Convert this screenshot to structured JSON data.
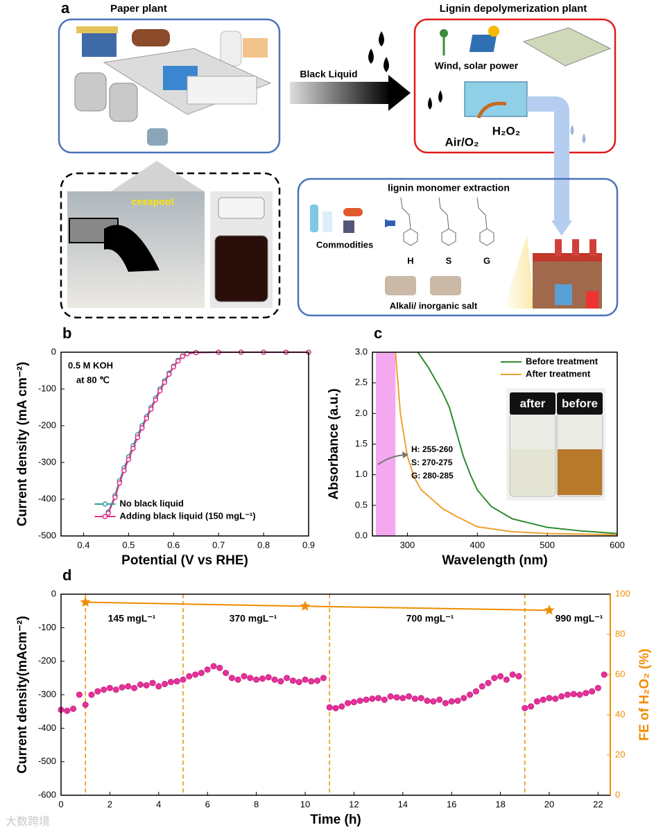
{
  "panel_a": {
    "label": "a",
    "paper_plant": "Paper plant",
    "cesspool": "cesspool",
    "black_liquid": "Black Liquid",
    "lignin_plant": "Lignin depolymerization plant",
    "wind_solar": "Wind, solar power",
    "h2o2": "H₂O₂",
    "air_o2": "Air/O₂",
    "extraction": "lignin monomer extraction",
    "commodities": "Commodities",
    "monomers": [
      "H",
      "S",
      "G"
    ],
    "salt": "Alkali/ inorganic salt"
  },
  "watermark": "大数跨境",
  "chart_data": [
    {
      "type": "line",
      "label": "b",
      "xlabel": "Potential (V vs RHE)",
      "ylabel": "Current density (mA cm⁻²)",
      "annotations": [
        "0.5 M KOH",
        "at 80 ℃"
      ],
      "markers": true,
      "legend": "lower center",
      "xlim": [
        0.35,
        0.9
      ],
      "xticks": [
        0.4,
        0.5,
        0.6,
        0.7,
        0.8,
        0.9
      ],
      "ylim": [
        -500,
        0
      ],
      "yticks": [
        -500,
        -400,
        -300,
        -200,
        -100,
        0
      ],
      "x": [
        0.455,
        0.47,
        0.48,
        0.49,
        0.5,
        0.51,
        0.52,
        0.53,
        0.54,
        0.55,
        0.56,
        0.57,
        0.58,
        0.59,
        0.6,
        0.61,
        0.62,
        0.63,
        0.65,
        0.7,
        0.75,
        0.8,
        0.85,
        0.9
      ],
      "series": [
        {
          "name": "No black liquid",
          "color": "#2a9d9d",
          "values": [
            -435,
            -390,
            -350,
            -315,
            -285,
            -255,
            -225,
            -200,
            -175,
            -150,
            -125,
            -100,
            -78,
            -57,
            -38,
            -22,
            -10,
            -4,
            -1,
            0,
            0,
            0,
            0,
            0
          ]
        },
        {
          "name": "Adding black liquid (150 mgL⁻¹)",
          "color": "#e0308a",
          "values": [
            -438,
            -395,
            -356,
            -322,
            -292,
            -262,
            -232,
            -206,
            -180,
            -155,
            -130,
            -105,
            -82,
            -60,
            -40,
            -24,
            -11,
            -4,
            -1,
            0,
            0,
            0,
            0,
            0
          ]
        }
      ]
    },
    {
      "type": "line",
      "label": "c",
      "xlabel": "Wavelength (nm)",
      "ylabel": "Absorbance (a.u.)",
      "annotations": [
        "H: 255-260",
        "S: 270-275",
        "G: 280-285"
      ],
      "highlight": [
        255,
        283
      ],
      "highlight_color": "#f4a8f0",
      "inset_labels": [
        "after",
        "before"
      ],
      "legend": "upper right",
      "xlim": [
        250,
        600
      ],
      "xticks": [
        300,
        400,
        500,
        600
      ],
      "ylim": [
        0,
        3
      ],
      "yticks": [
        {
          "value": 0,
          "label": "0.0"
        },
        0.5,
        {
          "value": 1,
          "label": "1.0"
        },
        1.5,
        {
          "value": 2,
          "label": "2.0"
        },
        2.5,
        {
          "value": 3,
          "label": "3.0"
        }
      ],
      "series": [
        {
          "name": "Before treatment",
          "color": "#2e8b2e",
          "x": [
            315,
            330,
            350,
            360,
            370,
            380,
            390,
            400,
            420,
            450,
            500,
            550,
            600
          ],
          "values": [
            3,
            2.75,
            2.35,
            2.1,
            1.7,
            1.3,
            1,
            0.75,
            0.48,
            0.28,
            0.14,
            0.08,
            0.04
          ]
        },
        {
          "name": "After treatment",
          "color": "#f0a030",
          "x": [
            283,
            290,
            300,
            310,
            320,
            340,
            350,
            370,
            400,
            450,
            500,
            600
          ],
          "values": [
            3,
            2,
            1.3,
            0.95,
            0.75,
            0.55,
            0.45,
            0.32,
            0.15,
            0.07,
            0.04,
            0.02
          ]
        }
      ]
    },
    {
      "type": "scatter",
      "label": "d",
      "xlabel": "Time (h)",
      "ylabel": "Current density(mAcm⁻²)",
      "y2label": "FE of H₂O₂ (%)",
      "vlines": [
        1,
        5,
        11,
        19
      ],
      "segment_labels": [
        "145 mgL⁻¹",
        "370 mgL⁻¹",
        "700 mgL⁻¹",
        "990 mgL⁻¹"
      ],
      "xlim": [
        0,
        22.5
      ],
      "xticks": [
        0,
        2,
        4,
        6,
        8,
        10,
        12,
        14,
        16,
        18,
        20,
        22
      ],
      "ylim": [
        -600,
        0
      ],
      "yticks": [
        -600,
        -500,
        -400,
        -300,
        -200,
        -100,
        0
      ],
      "y2lim": [
        0,
        100
      ],
      "y2ticks": [
        0,
        20,
        40,
        60,
        80,
        100
      ],
      "x": [
        0,
        0.25,
        0.5,
        0.75,
        1,
        1.25,
        1.5,
        1.75,
        2,
        2.25,
        2.5,
        2.75,
        3,
        3.25,
        3.5,
        3.75,
        4,
        4.25,
        4.5,
        4.75,
        5,
        5.25,
        5.5,
        5.75,
        6,
        6.25,
        6.5,
        6.75,
        7,
        7.25,
        7.5,
        7.75,
        8,
        8.25,
        8.5,
        8.75,
        9,
        9.25,
        9.5,
        9.75,
        10,
        10.25,
        10.5,
        10.75,
        11,
        11.25,
        11.5,
        11.75,
        12,
        12.25,
        12.5,
        12.75,
        13,
        13.25,
        13.5,
        13.75,
        14,
        14.25,
        14.5,
        14.75,
        15,
        15.25,
        15.5,
        15.75,
        16,
        16.25,
        16.5,
        16.75,
        17,
        17.25,
        17.5,
        17.75,
        18,
        18.25,
        18.5,
        18.75,
        19,
        19.25,
        19.5,
        19.75,
        20,
        20.25,
        20.5,
        20.75,
        21,
        21.25,
        21.5,
        21.75,
        22,
        22.25
      ],
      "series": [
        {
          "color": "#e6309a",
          "values": [
            -345,
            -348,
            -342,
            -300,
            -330,
            -300,
            -290,
            -285,
            -280,
            -285,
            -278,
            -275,
            -280,
            -270,
            -272,
            -265,
            -275,
            -268,
            -262,
            -260,
            -255,
            -245,
            -240,
            -235,
            -225,
            -215,
            -220,
            -235,
            -250,
            -255,
            -245,
            -250,
            -255,
            -252,
            -248,
            -255,
            -260,
            -250,
            -258,
            -262,
            -255,
            -260,
            -258,
            -250,
            -338,
            -340,
            -335,
            -325,
            -322,
            -318,
            -315,
            -312,
            -310,
            -315,
            -305,
            -308,
            -310,
            -305,
            -312,
            -310,
            -318,
            -320,
            -315,
            -325,
            -320,
            -318,
            -310,
            -300,
            -290,
            -275,
            -265,
            -250,
            -245,
            -255,
            -240,
            -245,
            -340,
            -335,
            -320,
            -315,
            -310,
            -312,
            -305,
            -300,
            -298,
            -300,
            -295,
            -290,
            -280,
            -240
          ]
        },
        {
          "color": "#f08c00",
          "axis": "y2",
          "marker": "star",
          "x": [
            1,
            10,
            20
          ],
          "values": [
            96,
            94,
            92
          ]
        }
      ]
    }
  ]
}
